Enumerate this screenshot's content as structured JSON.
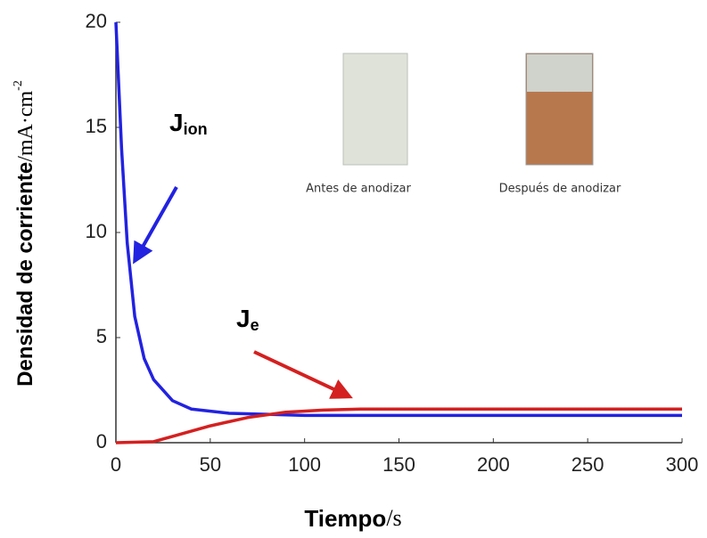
{
  "chart_data": {
    "type": "line",
    "xlabel": {
      "main": "Tiempo",
      "unit": "/s"
    },
    "ylabel": {
      "main": "Densidad de corriente",
      "unit": "/mA·cm",
      "exp": "-2"
    },
    "xlim": [
      0,
      300
    ],
    "xticks": [
      0,
      50,
      100,
      150,
      200,
      250,
      300
    ],
    "ylim": [
      0,
      20
    ],
    "yticks": [
      0,
      5,
      10,
      15,
      20
    ],
    "series": [
      {
        "color": "#2222e0",
        "x": [
          0,
          3,
          6,
          10,
          15,
          20,
          30,
          40,
          60,
          80,
          100,
          150,
          300
        ],
        "values": [
          20,
          14,
          9.5,
          6,
          4,
          3,
          2,
          1.6,
          1.4,
          1.35,
          1.3,
          1.3,
          1.3
        ]
      },
      {
        "color": "#d42020",
        "x": [
          0,
          20,
          30,
          50,
          70,
          90,
          110,
          130,
          300
        ],
        "values": [
          0,
          0.05,
          0.3,
          0.8,
          1.2,
          1.45,
          1.55,
          1.6,
          1.6
        ]
      }
    ],
    "annotations": [
      {
        "main": "J",
        "sub": "ion"
      },
      {
        "main": "J",
        "sub": "e"
      }
    ],
    "photo_captions": [
      "Antes de anodizar",
      "Después de anodizar"
    ]
  }
}
